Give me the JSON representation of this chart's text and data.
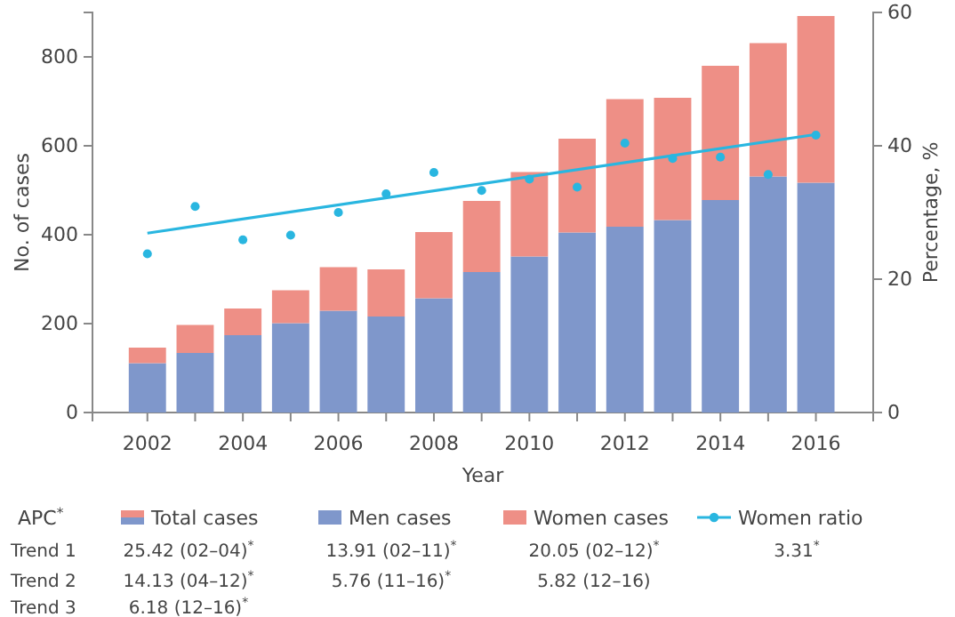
{
  "chart_data": {
    "type": "bar",
    "stacked": true,
    "xlabel": "Year",
    "ylabel": "No. of cases",
    "y2label": "Percentage, %",
    "x": [
      2002,
      2003,
      2004,
      2005,
      2006,
      2007,
      2008,
      2009,
      2010,
      2011,
      2012,
      2013,
      2014,
      2015,
      2016
    ],
    "series": [
      {
        "name": "Men cases",
        "color": "#7f97cb",
        "values": [
          111,
          134,
          174,
          201,
          229,
          216,
          257,
          316,
          351,
          405,
          418,
          433,
          478,
          531,
          517
        ]
      },
      {
        "name": "Women cases",
        "color": "#ee8f86",
        "values": [
          35,
          63,
          60,
          74,
          98,
          106,
          149,
          160,
          190,
          211,
          287,
          275,
          302,
          300,
          375
        ]
      },
      {
        "name": "Women ratio",
        "type": "scatter",
        "axis": "y2",
        "marker": "circle",
        "color": "#29b6e0",
        "values": [
          23.8,
          30.9,
          25.9,
          26.6,
          30.0,
          32.8,
          36.0,
          33.3,
          35.0,
          33.8,
          40.4,
          38.1,
          38.3,
          35.7,
          41.6
        ]
      },
      {
        "type": "line",
        "axis": "y2",
        "color": "#29b6e0",
        "x": [
          2002,
          2016
        ],
        "values": [
          26.9,
          41.7
        ]
      }
    ],
    "xlim": [
      2000.85,
      2017.2
    ],
    "xticks": [
      2002,
      {
        "value": 2003,
        "label": null
      },
      2004,
      {
        "value": 2005,
        "label": null
      },
      2006,
      {
        "value": 2007,
        "label": null
      },
      2008,
      {
        "value": 2009,
        "label": null
      },
      2010,
      {
        "value": 2011,
        "label": null
      },
      2012,
      {
        "value": 2013,
        "label": null
      },
      2014,
      {
        "value": 2015,
        "label": null
      },
      2016
    ],
    "ylim": [
      0,
      900
    ],
    "yticks": [
      0,
      200,
      400,
      600,
      800
    ],
    "y2lim": [
      0,
      60
    ],
    "y2ticks": [
      0,
      20,
      40,
      60
    ],
    "grid": false,
    "legend": "bottom",
    "annotations": [
      "APC$^{*}$",
      "Total cases",
      "Trend 1",
      "25.42 (02–04)$^{*}$",
      "13.91 (02–11)$^{*}$",
      "20.05 (02–12)$^{*}$",
      "3.31$^{*}$",
      "Trend 2",
      "14.13 (04–12)$^{*}$",
      "5.76 (11–16)$^{*}$",
      "5.82 (12–16)",
      "Trend 3",
      "6.18 (12–16)$^{*}$"
    ]
  }
}
